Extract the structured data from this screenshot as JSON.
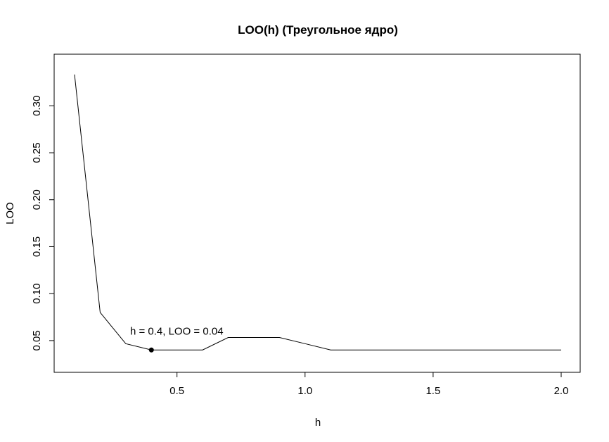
{
  "chart_data": {
    "type": "line",
    "title": "LOO(h) (Треугольное ядро)",
    "xlabel": "h",
    "ylabel": "LOO",
    "xlim": [
      0.1,
      2.0
    ],
    "ylim": [
      0.0267,
      0.3467
    ],
    "x_ticks": [
      {
        "value": 0.5,
        "label": "0.5"
      },
      {
        "value": 1.0,
        "label": "1.0"
      },
      {
        "value": 1.5,
        "label": "1.5"
      },
      {
        "value": 2.0,
        "label": "2.0"
      }
    ],
    "y_ticks": [
      {
        "value": 0.05,
        "label": "0.05"
      },
      {
        "value": 0.1,
        "label": "0.10"
      },
      {
        "value": 0.15,
        "label": "0.15"
      },
      {
        "value": 0.2,
        "label": "0.20"
      },
      {
        "value": 0.25,
        "label": "0.25"
      },
      {
        "value": 0.3,
        "label": "0.30"
      }
    ],
    "series": [
      {
        "x": [
          0.1,
          0.2,
          0.3,
          0.4,
          0.5,
          0.6,
          0.7,
          0.8,
          0.9,
          1.0,
          1.1,
          1.2,
          1.3,
          1.4,
          1.5,
          1.6,
          1.7,
          1.8,
          1.9,
          2.0
        ],
        "y": [
          0.3333,
          0.08,
          0.0467,
          0.04,
          0.04,
          0.04,
          0.0533,
          0.0533,
          0.0533,
          0.0467,
          0.04,
          0.04,
          0.04,
          0.04,
          0.04,
          0.04,
          0.04,
          0.04,
          0.04,
          0.04
        ],
        "color": "#000000"
      }
    ],
    "highlight_point": {
      "x": 0.4,
      "y": 0.04
    },
    "annotation": "h = 0.4, LOO = 0.04",
    "grid": false,
    "legend": "none"
  }
}
